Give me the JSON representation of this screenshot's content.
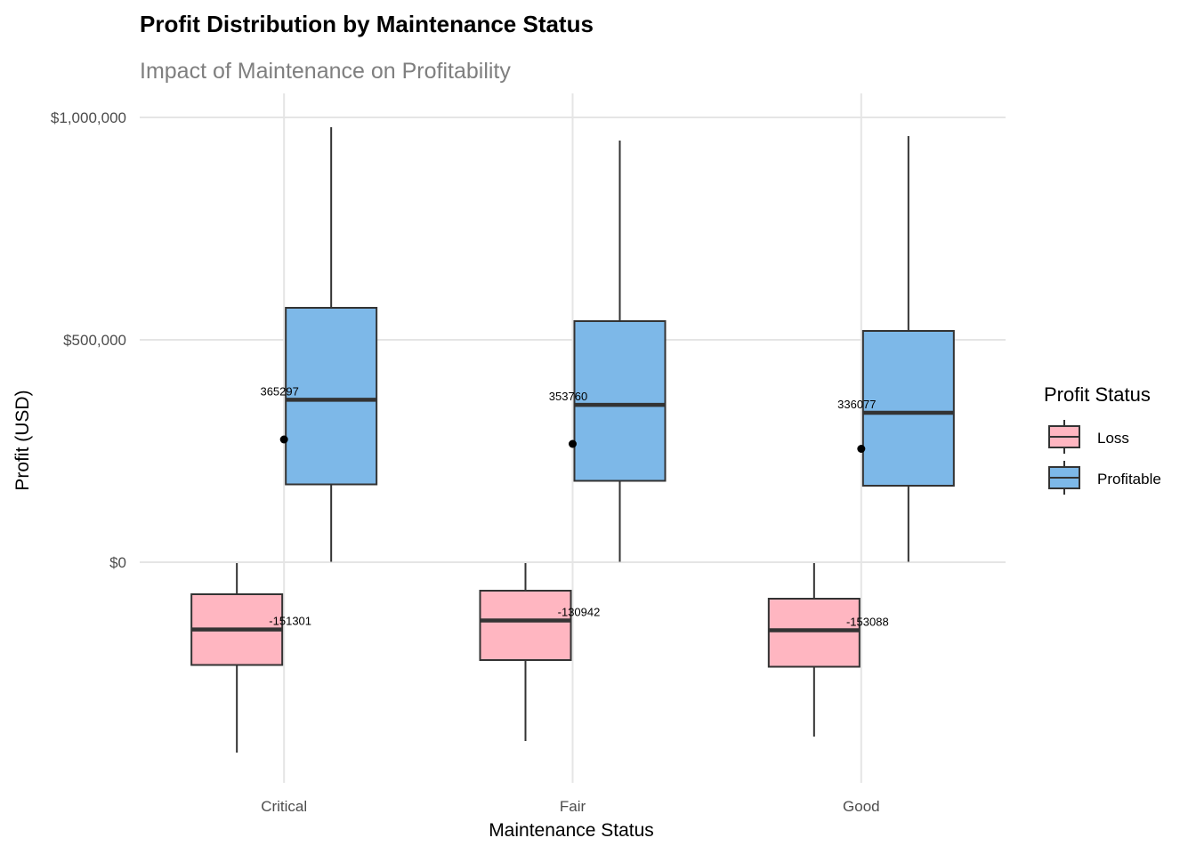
{
  "chart_data": {
    "type": "boxplot",
    "title": "Profit Distribution by Maintenance Status",
    "subtitle": "Impact of Maintenance on Profitability",
    "xlabel": "Maintenance Status",
    "ylabel": "Profit (USD)",
    "categories": [
      "Critical",
      "Fair",
      "Good"
    ],
    "ylim": [
      -485000,
      1000000
    ],
    "y_ticks": [
      0,
      500000,
      1000000
    ],
    "y_tick_labels": [
      "$0",
      "$500,000",
      "$1,000,000"
    ],
    "grid": true,
    "legend": {
      "title": "Profit Status",
      "position": "right"
    },
    "series": [
      {
        "name": "Loss",
        "color": "#FFB6C1",
        "boxes": [
          {
            "category": "Critical",
            "min": -428000,
            "q1": -231000,
            "median": -151301,
            "q3": -72000,
            "max": -2000,
            "median_label": "-151301"
          },
          {
            "category": "Fair",
            "min": -402000,
            "q1": -220000,
            "median": -130942,
            "q3": -64000,
            "max": -2000,
            "median_label": "-130942"
          },
          {
            "category": "Good",
            "min": -392000,
            "q1": -235000,
            "median": -153088,
            "q3": -82000,
            "max": -2000,
            "median_label": "-153088"
          }
        ]
      },
      {
        "name": "Profitable",
        "color": "#7DB8E8",
        "boxes": [
          {
            "category": "Critical",
            "min": 1000,
            "q1": 175000,
            "median": 365297,
            "q3": 572000,
            "max": 978000,
            "mean": 276000,
            "median_label": "365297"
          },
          {
            "category": "Fair",
            "min": 1000,
            "q1": 183000,
            "median": 353760,
            "q3": 542000,
            "max": 948000,
            "mean": 266000,
            "median_label": "353760"
          },
          {
            "category": "Good",
            "min": 1000,
            "q1": 172000,
            "median": 336077,
            "q3": 520000,
            "max": 958000,
            "mean": 255000,
            "median_label": "336077"
          }
        ]
      }
    ]
  }
}
